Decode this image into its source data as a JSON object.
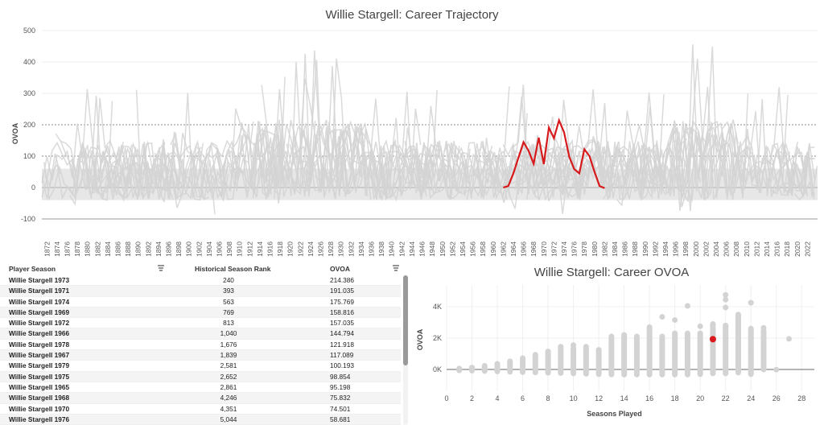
{
  "top_chart": {
    "title": "Willie Stargell: Career Trajectory",
    "ylabel": "OVOA",
    "yticks": [
      "500",
      "400",
      "300",
      "200",
      "100",
      "0",
      "-100"
    ],
    "xticks": [
      "1872",
      "1874",
      "1876",
      "1878",
      "1880",
      "1882",
      "1884",
      "1886",
      "1888",
      "1890",
      "1892",
      "1894",
      "1896",
      "1898",
      "1900",
      "1902",
      "1904",
      "1906",
      "1908",
      "1910",
      "1912",
      "1914",
      "1916",
      "1918",
      "1920",
      "1922",
      "1924",
      "1926",
      "1928",
      "1930",
      "1932",
      "1934",
      "1936",
      "1938",
      "1940",
      "1942",
      "1944",
      "1946",
      "1948",
      "1950",
      "1952",
      "1954",
      "1956",
      "1958",
      "1960",
      "1962",
      "1964",
      "1966",
      "1968",
      "1970",
      "1972",
      "1974",
      "1976",
      "1978",
      "1980",
      "1982",
      "1984",
      "1986",
      "1988",
      "1990",
      "1992",
      "1994",
      "1996",
      "1998",
      "2000",
      "2002",
      "2004",
      "2006",
      "2008",
      "2010",
      "2012",
      "2014",
      "2016",
      "2018",
      "2020",
      "2022"
    ]
  },
  "chart_data": [
    {
      "type": "line",
      "title": "Willie Stargell: Career Trajectory",
      "ylabel": "OVOA",
      "xlim": [
        1871,
        2024
      ],
      "ylim": [
        -130,
        500
      ],
      "highlight_color": "#d7191c",
      "background_color": "#d3d3d3",
      "series": [
        {
          "name": "Willie Stargell",
          "x": [
            1962,
            1963,
            1964,
            1965,
            1966,
            1967,
            1968,
            1969,
            1970,
            1971,
            1972,
            1973,
            1974,
            1975,
            1976,
            1977,
            1978,
            1979,
            1980,
            1981,
            1982
          ],
          "y": [
            0,
            5,
            45,
            95.2,
            144.8,
            117.1,
            75.8,
            158.8,
            74.5,
            191.0,
            157.0,
            214.4,
            175.8,
            98.9,
            58.7,
            45,
            121.9,
            100.2,
            50,
            5,
            -2
          ]
        }
      ]
    },
    {
      "type": "scatter",
      "title": "Willie Stargell: Career OVOA",
      "xlabel": "Seasons Played",
      "ylabel": "OVOA",
      "xlim": [
        0,
        29
      ],
      "ylim": [
        -800,
        5000
      ],
      "xticks": [
        "0",
        "2",
        "4",
        "6",
        "8",
        "10",
        "12",
        "14",
        "16",
        "18",
        "20",
        "22",
        "24",
        "26",
        "28"
      ],
      "yticks": [
        "4K",
        "2K",
        "0K"
      ],
      "highlight_color": "#d7191c",
      "highlight": {
        "x": 21,
        "y": 1930
      },
      "ranges": [
        {
          "x": 1,
          "min": -60,
          "max": 60
        },
        {
          "x": 2,
          "min": -80,
          "max": 120
        },
        {
          "x": 3,
          "min": -100,
          "max": 230
        },
        {
          "x": 4,
          "min": -120,
          "max": 360
        },
        {
          "x": 5,
          "min": -150,
          "max": 520
        },
        {
          "x": 6,
          "min": -170,
          "max": 720
        },
        {
          "x": 7,
          "min": -190,
          "max": 940
        },
        {
          "x": 8,
          "min": -210,
          "max": 1150
        },
        {
          "x": 9,
          "min": -230,
          "max": 1350
        },
        {
          "x": 10,
          "min": -250,
          "max": 1350
        },
        {
          "x": 11,
          "min": -280,
          "max": 1450
        },
        {
          "x": 12,
          "min": -300,
          "max": 1250
        },
        {
          "x": 13,
          "min": -320,
          "max": 2100
        },
        {
          "x": 14,
          "min": -330,
          "max": 2200
        },
        {
          "x": 15,
          "min": -330,
          "max": 2100
        },
        {
          "x": 16,
          "min": -330,
          "max": 2700
        },
        {
          "x": 17,
          "min": -330,
          "max": 2100
        },
        {
          "x": 18,
          "min": -330,
          "max": 2300
        },
        {
          "x": 19,
          "min": -330,
          "max": 2300
        },
        {
          "x": 20,
          "min": -300,
          "max": 2300
        },
        {
          "x": 21,
          "min": -250,
          "max": 2900
        },
        {
          "x": 22,
          "min": -250,
          "max": 2800
        },
        {
          "x": 23,
          "min": -200,
          "max": 3400
        },
        {
          "x": 24,
          "min": -300,
          "max": 2600
        },
        {
          "x": 25,
          "min": 0,
          "max": 2400
        }
      ],
      "outliers": [
        {
          "x": 17,
          "y": 3350
        },
        {
          "x": 19,
          "y": 4050
        },
        {
          "x": 18,
          "y": 3150
        },
        {
          "x": 22,
          "y": 4750
        },
        {
          "x": 22,
          "y": 4450
        },
        {
          "x": 22,
          "y": 3950
        },
        {
          "x": 24,
          "y": 4250
        },
        {
          "x": 23,
          "y": 3500
        },
        {
          "x": 20,
          "y": 2750
        },
        {
          "x": 21,
          "y": 2200
        },
        {
          "x": 10,
          "y": 1550
        },
        {
          "x": 9,
          "y": 1450
        },
        {
          "x": 25,
          "y": 2650
        },
        {
          "x": 25,
          "y": 2450
        },
        {
          "x": 26,
          "y": -10
        },
        {
          "x": 27,
          "y": 1950
        },
        {
          "x": 24,
          "y": -260
        },
        {
          "x": 25,
          "y": 150
        },
        {
          "x": 24,
          "y": 1350
        }
      ]
    }
  ],
  "table": {
    "headers": {
      "player": "Player Season",
      "rank": "Historical Season Rank",
      "ovoa": "OVOA"
    },
    "rows": [
      {
        "player": "Willie Stargell 1973",
        "rank": "240",
        "ovoa": "214.386"
      },
      {
        "player": "Willie Stargell 1971",
        "rank": "393",
        "ovoa": "191.035"
      },
      {
        "player": "Willie Stargell 1974",
        "rank": "563",
        "ovoa": "175.769"
      },
      {
        "player": "Willie Stargell 1969",
        "rank": "769",
        "ovoa": "158.816"
      },
      {
        "player": "Willie Stargell 1972",
        "rank": "813",
        "ovoa": "157.035"
      },
      {
        "player": "Willie Stargell 1966",
        "rank": "1,040",
        "ovoa": "144.794"
      },
      {
        "player": "Willie Stargell 1978",
        "rank": "1,676",
        "ovoa": "121.918"
      },
      {
        "player": "Willie Stargell 1967",
        "rank": "1,839",
        "ovoa": "117.089"
      },
      {
        "player": "Willie Stargell 1979",
        "rank": "2,581",
        "ovoa": "100.193"
      },
      {
        "player": "Willie Stargell 1975",
        "rank": "2,652",
        "ovoa": "98.854"
      },
      {
        "player": "Willie Stargell 1965",
        "rank": "2,861",
        "ovoa": "95.198"
      },
      {
        "player": "Willie Stargell 1968",
        "rank": "4,246",
        "ovoa": "75.832"
      },
      {
        "player": "Willie Stargell 1970",
        "rank": "4,351",
        "ovoa": "74.501"
      },
      {
        "player": "Willie Stargell 1976",
        "rank": "5,044",
        "ovoa": "58.681"
      }
    ]
  }
}
